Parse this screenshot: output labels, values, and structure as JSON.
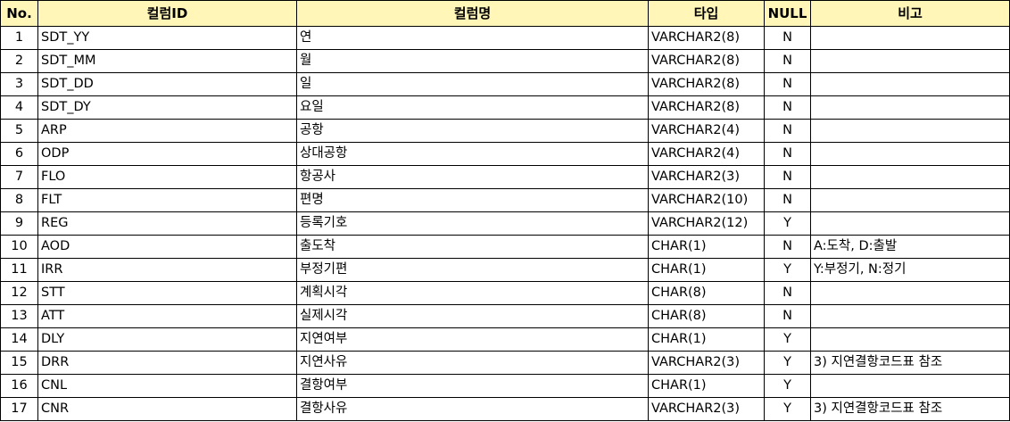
{
  "table": {
    "headers": {
      "no": "No.",
      "column_id": "컬럼ID",
      "column_name": "컬럼명",
      "type": "타입",
      "null": "NULL",
      "remarks": "비고"
    },
    "rows": [
      {
        "no": "1",
        "column_id": "SDT_YY",
        "column_name": "연",
        "type": "VARCHAR2(8)",
        "null": "N",
        "remarks": ""
      },
      {
        "no": "2",
        "column_id": "SDT_MM",
        "column_name": "월",
        "type": "VARCHAR2(8)",
        "null": "N",
        "remarks": ""
      },
      {
        "no": "3",
        "column_id": "SDT_DD",
        "column_name": "일",
        "type": "VARCHAR2(8)",
        "null": "N",
        "remarks": ""
      },
      {
        "no": "4",
        "column_id": "SDT_DY",
        "column_name": "요일",
        "type": "VARCHAR2(8)",
        "null": "N",
        "remarks": ""
      },
      {
        "no": "5",
        "column_id": "ARP",
        "column_name": "공항",
        "type": "VARCHAR2(4)",
        "null": "N",
        "remarks": ""
      },
      {
        "no": "6",
        "column_id": "ODP",
        "column_name": "상대공항",
        "type": "VARCHAR2(4)",
        "null": "N",
        "remarks": ""
      },
      {
        "no": "7",
        "column_id": "FLO",
        "column_name": "항공사",
        "type": "VARCHAR2(3)",
        "null": "N",
        "remarks": ""
      },
      {
        "no": "8",
        "column_id": "FLT",
        "column_name": "편명",
        "type": "VARCHAR2(10)",
        "null": "N",
        "remarks": ""
      },
      {
        "no": "9",
        "column_id": "REG",
        "column_name": "등록기호",
        "type": "VARCHAR2(12)",
        "null": "Y",
        "remarks": ""
      },
      {
        "no": "10",
        "column_id": "AOD",
        "column_name": "출도착",
        "type": "CHAR(1)",
        "null": "N",
        "remarks": "A:도착, D:출발"
      },
      {
        "no": "11",
        "column_id": "IRR",
        "column_name": "부정기편",
        "type": "CHAR(1)",
        "null": "Y",
        "remarks": "Y:부정기, N:정기"
      },
      {
        "no": "12",
        "column_id": "STT",
        "column_name": "계획시각",
        "type": "CHAR(8)",
        "null": "N",
        "remarks": ""
      },
      {
        "no": "13",
        "column_id": "ATT",
        "column_name": "실제시각",
        "type": "CHAR(8)",
        "null": "N",
        "remarks": ""
      },
      {
        "no": "14",
        "column_id": "DLY",
        "column_name": "지연여부",
        "type": "CHAR(1)",
        "null": "Y",
        "remarks": ""
      },
      {
        "no": "15",
        "column_id": "DRR",
        "column_name": "지연사유",
        "type": "VARCHAR2(3)",
        "null": "Y",
        "remarks": "3) 지연결항코드표 참조"
      },
      {
        "no": "16",
        "column_id": "CNL",
        "column_name": "결항여부",
        "type": "CHAR(1)",
        "null": "Y",
        "remarks": ""
      },
      {
        "no": "17",
        "column_id": "CNR",
        "column_name": "결항사유",
        "type": "VARCHAR2(3)",
        "null": "Y",
        "remarks": "3) 지연결항코드표 참조"
      }
    ]
  },
  "colors": {
    "header_background": "#fff6b8",
    "border": "#000000"
  }
}
